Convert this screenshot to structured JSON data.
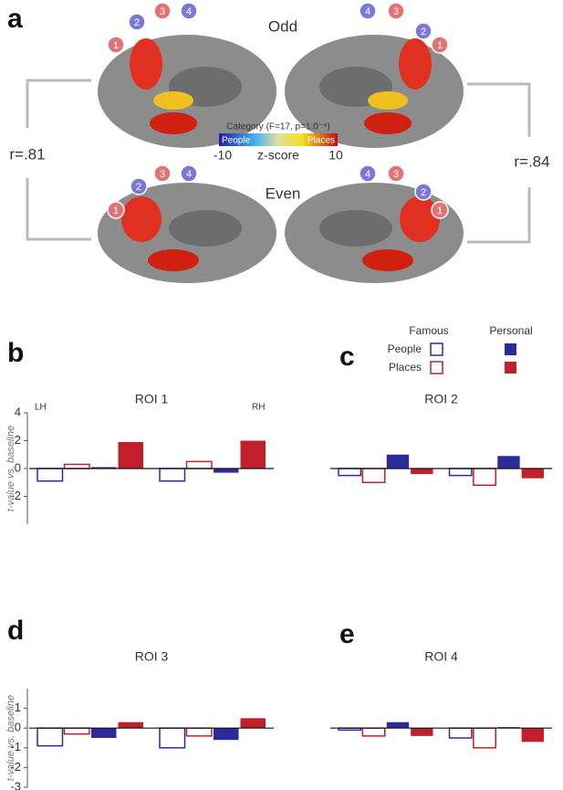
{
  "panel_a": {
    "letter": "a",
    "odd": "Odd",
    "even": "Even",
    "r_left": "r=.81",
    "r_right": "r=.84",
    "roi_labels": [
      "1",
      "2",
      "3",
      "4"
    ],
    "colorbar": {
      "title": "Category (F=17, p=1.0⁻⁴)",
      "low_name": "People",
      "high_name": "Places",
      "label": "z-score",
      "clim": [
        -10,
        10
      ],
      "ticks": [
        -10,
        10
      ]
    }
  },
  "legend": {
    "famous": "Famous",
    "personal": "Personal",
    "people": "People",
    "places": "Places"
  },
  "y_label": "t-value vs. baseline",
  "chart_data": [
    {
      "type": "bar",
      "panel": "b",
      "title": "ROI 1",
      "categories": [
        "LH",
        "RH"
      ],
      "ylim": [
        -4,
        4
      ],
      "yticks": [
        4,
        2,
        0,
        -2
      ],
      "series": [
        {
          "color": "#2b2b9a",
          "filled": false,
          "values": [
            -0.9,
            -0.9
          ]
        },
        {
          "color": "#c0202a",
          "filled": false,
          "values": [
            0.3,
            0.5
          ]
        },
        {
          "color": "#2b2b9a",
          "filled": true,
          "values": [
            0.1,
            -0.3
          ]
        },
        {
          "color": "#c0202a",
          "filled": true,
          "values": [
            1.9,
            2.0
          ]
        }
      ]
    },
    {
      "type": "bar",
      "panel": "c",
      "title": "ROI 2",
      "categories": [
        null,
        null
      ],
      "ylim": [
        -4,
        4
      ],
      "series": [
        {
          "color": "#2b2b9a",
          "filled": false,
          "values": [
            -0.5,
            -0.5
          ]
        },
        {
          "color": "#c0202a",
          "filled": false,
          "values": [
            -1.0,
            -1.2
          ]
        },
        {
          "color": "#2b2b9a",
          "filled": true,
          "values": [
            1.0,
            0.9
          ]
        },
        {
          "color": "#c0202a",
          "filled": true,
          "values": [
            -0.4,
            -0.7
          ]
        }
      ]
    },
    {
      "type": "bar",
      "panel": "d",
      "title": "ROI 3",
      "categories": [
        null,
        null
      ],
      "ylim": [
        -3,
        2
      ],
      "yticks": [
        1,
        0,
        -1,
        -2,
        -3
      ],
      "series": [
        {
          "color": "#2b2b9a",
          "filled": false,
          "values": [
            -0.9,
            -1.0
          ]
        },
        {
          "color": "#c0202a",
          "filled": false,
          "values": [
            -0.3,
            -0.4
          ]
        },
        {
          "color": "#2b2b9a",
          "filled": true,
          "values": [
            -0.5,
            -0.6
          ]
        },
        {
          "color": "#c0202a",
          "filled": true,
          "values": [
            0.3,
            0.5
          ]
        }
      ]
    },
    {
      "type": "bar",
      "panel": "e",
      "title": "ROI 4",
      "categories": [
        null,
        null
      ],
      "ylim": [
        -3,
        2
      ],
      "series": [
        {
          "color": "#2b2b9a",
          "filled": false,
          "values": [
            -0.1,
            -0.5
          ]
        },
        {
          "color": "#c0202a",
          "filled": false,
          "values": [
            -0.4,
            -1.0
          ]
        },
        {
          "color": "#2b2b9a",
          "filled": true,
          "values": [
            0.3,
            0.05
          ]
        },
        {
          "color": "#c0202a",
          "filled": true,
          "values": [
            -0.4,
            -0.7
          ]
        }
      ]
    }
  ]
}
